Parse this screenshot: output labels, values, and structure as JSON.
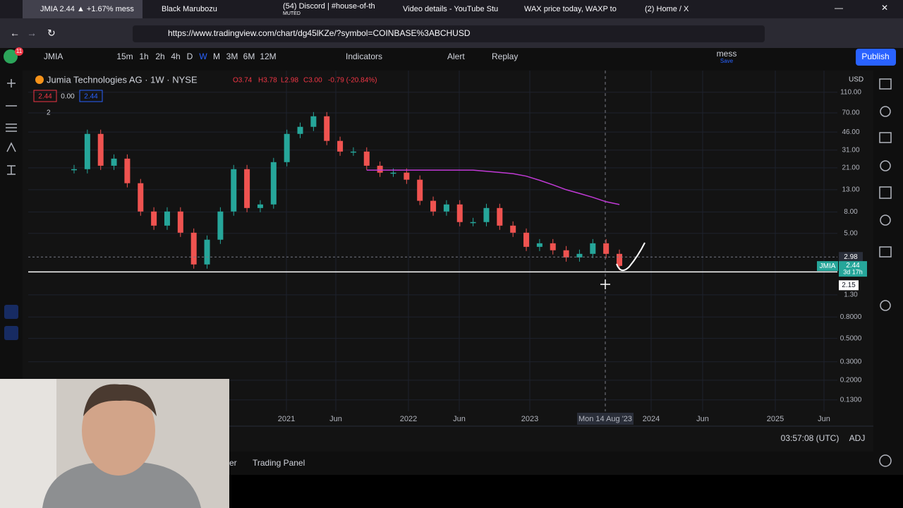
{
  "browser": {
    "tabs": [
      "JMIA 2.44 ▲ +1.67% mess",
      "Black Marubozu",
      "(54) Discord | #house-of-th",
      "Video details - YouTube Stu",
      "WAX price today, WAXP to",
      "(2) Home / X"
    ],
    "muted": "MUTED",
    "url": "https://www.tradingview.com/chart/dg45lKZe/?symbol=COINBASE%3ABCHUSD"
  },
  "toolbar": {
    "badge": "11",
    "symbol": "JMIA",
    "intervals": [
      "15m",
      "1h",
      "2h",
      "4h",
      "D",
      "W",
      "M",
      "3M",
      "6M",
      "12M"
    ],
    "indicators": "Indicators",
    "alert": "Alert",
    "replay": "Replay",
    "layout_name": "mess",
    "save": "Save",
    "publish": "Publish"
  },
  "chart_data": {
    "type": "candlestick",
    "title": "Jumia Technologies AG · 1W · NYSE",
    "ohlc": [
      "O3.74",
      "H3.78",
      "L2.98",
      "C3.00",
      "-0.79 (-20.84%)"
    ],
    "price_boxes": [
      "2.44",
      "0.00",
      "2.44"
    ],
    "indicator_count": "2",
    "currency": "USD",
    "log_scale": true,
    "series": [
      {
        "values": [
          20.4,
          44.2,
          22.0,
          25.7,
          15.0,
          8.07,
          5.92,
          8.07,
          5.07,
          2.53,
          4.35,
          8.07,
          20.4,
          8.71,
          9.42,
          23.8,
          44.2,
          51.6,
          65.0,
          37.9,
          30.0,
          30.0,
          22.0,
          18.9,
          18.9,
          16.2,
          10.2,
          8.07,
          9.42,
          6.4,
          6.4,
          8.71,
          5.92,
          5.07,
          3.72,
          4.02,
          3.45,
          2.95,
          3.19,
          4.02,
          3.19,
          2.45
        ]
      },
      {
        "color": "#c13ad6",
        "values": [
          null,
          null,
          null,
          null,
          null,
          null,
          null,
          null,
          null,
          null,
          null,
          null,
          null,
          null,
          null,
          null,
          null,
          null,
          null,
          null,
          null,
          null,
          20,
          20,
          20,
          20,
          20,
          20,
          20,
          20,
          20,
          19.5,
          19,
          18.5,
          17.5,
          16,
          14.5,
          13,
          12,
          11,
          10,
          9.4
        ]
      }
    ],
    "ylim": [
      0.106,
      126
    ],
    "yticks": [
      {
        "value": 110,
        "label": "110.00"
      },
      {
        "value": 70,
        "label": "70.00"
      },
      {
        "value": 46,
        "label": "46.00"
      },
      {
        "value": 31,
        "label": "31.00"
      },
      {
        "value": 21,
        "label": "21.00"
      },
      {
        "value": 13,
        "label": "13.00"
      },
      {
        "value": 8,
        "label": "8.00"
      },
      {
        "value": 5,
        "label": "5.00"
      },
      {
        "value": 1.3,
        "label": "1.30"
      },
      {
        "value": 0.8,
        "label": "0.8000"
      },
      {
        "value": 0.5,
        "label": "0.5000"
      },
      {
        "value": 0.3,
        "label": "0.3000"
      },
      {
        "value": 0.2,
        "label": "0.2000"
      },
      {
        "value": 0.13,
        "label": "0.1300"
      }
    ],
    "low_line": {
      "value": 2.98,
      "label": "2.98"
    },
    "last_price": {
      "value": 2.44,
      "label": "2.44",
      "symbol": "JMIA",
      "countdown": "3d 17h"
    },
    "horizontal_line": {
      "value": 2.15,
      "label": "2.15"
    },
    "time_labels": [
      "2021",
      "Jun",
      "2022",
      "Jun",
      "2023",
      "Mon 14 Aug '23",
      "2024",
      "Jun",
      "2025",
      "Jun"
    ]
  },
  "footer": {
    "clock": "03:57:08 (UTC)",
    "adj": "ADJ",
    "tab_partial": "er",
    "trading_panel": "Trading Panel"
  }
}
